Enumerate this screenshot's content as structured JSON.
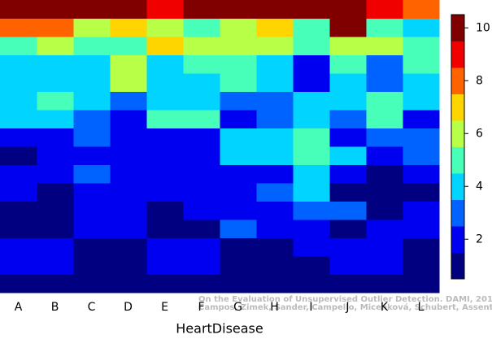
{
  "chart_data": {
    "type": "heatmap",
    "categories": [
      "A",
      "B",
      "C",
      "D",
      "E",
      "F",
      "G",
      "H",
      "I",
      "J",
      "K",
      "L"
    ],
    "xlabel": "HeartDisease",
    "colormap": "jet",
    "clim": [
      0.5,
      10.5
    ],
    "colorbar_ticks": [
      2,
      4,
      6,
      8,
      10
    ],
    "z": [
      [
        10,
        10,
        10,
        10,
        9,
        10,
        10,
        10,
        10,
        10,
        9,
        8
      ],
      [
        8,
        8,
        6,
        7,
        6,
        5,
        6,
        7,
        5,
        10,
        5,
        4
      ],
      [
        5,
        6,
        5,
        5,
        7,
        6,
        6,
        6,
        5,
        6,
        6,
        5
      ],
      [
        4,
        4,
        4,
        6,
        4,
        5,
        5,
        4,
        2,
        5,
        3,
        5
      ],
      [
        4,
        4,
        4,
        6,
        4,
        4,
        5,
        4,
        2,
        4,
        3,
        4
      ],
      [
        4,
        5,
        4,
        3,
        4,
        4,
        3,
        3,
        4,
        4,
        5,
        4
      ],
      [
        4,
        4,
        3,
        2,
        5,
        5,
        2,
        3,
        4,
        3,
        5,
        2
      ],
      [
        2,
        2,
        3,
        2,
        2,
        2,
        4,
        4,
        5,
        2,
        3,
        3
      ],
      [
        1,
        2,
        2,
        2,
        2,
        2,
        4,
        4,
        5,
        4,
        2,
        3
      ],
      [
        2,
        2,
        3,
        2,
        2,
        2,
        2,
        2,
        4,
        2,
        1,
        2
      ],
      [
        2,
        1,
        2,
        2,
        2,
        2,
        2,
        3,
        4,
        1,
        1,
        1
      ],
      [
        1,
        1,
        2,
        2,
        1,
        2,
        2,
        2,
        3,
        3,
        1,
        2
      ],
      [
        1,
        1,
        2,
        2,
        1,
        1,
        3,
        2,
        2,
        1,
        2,
        2
      ],
      [
        2,
        2,
        1,
        1,
        2,
        2,
        1,
        1,
        2,
        2,
        2,
        1
      ],
      [
        2,
        2,
        1,
        1,
        2,
        2,
        1,
        1,
        1,
        2,
        2,
        1
      ],
      [
        1,
        1,
        1,
        1,
        1,
        1,
        1,
        1,
        1,
        1,
        1,
        1
      ]
    ],
    "annotations": [
      "On the Evaluation of Unsupervised Outlier Detection. DAMI, 2015.",
      "Campos, Zimek, Sander, Campello, Micenková, Schubert, Assent, Houle"
    ]
  }
}
